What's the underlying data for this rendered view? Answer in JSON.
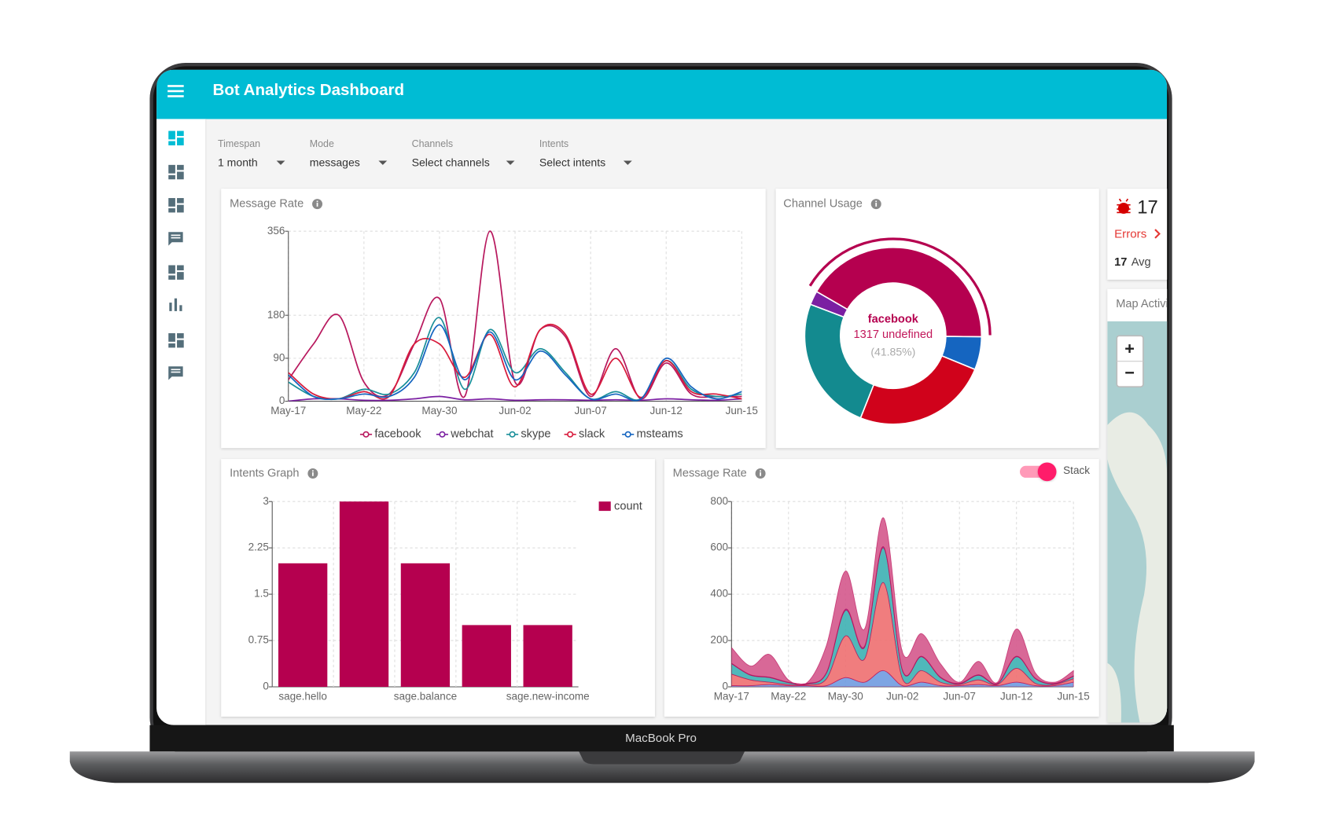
{
  "header": {
    "title": "Bot Analytics Dashboard"
  },
  "filters": [
    {
      "label": "Timespan",
      "value": "1 month"
    },
    {
      "label": "Mode",
      "value": "messages"
    },
    {
      "label": "Channels",
      "value": "Select channels"
    },
    {
      "label": "Intents",
      "value": "Select intents"
    }
  ],
  "errors": {
    "count": 17,
    "label": "Errors",
    "avg": 17,
    "avg_label": "Avg"
  },
  "map": {
    "title": "Map Activity",
    "zoom_in": "+",
    "zoom_out": "−"
  },
  "device_label": "MacBook Pro",
  "chart_data": [
    {
      "type": "line",
      "title": "Message Rate",
      "categories": [
        "May-17",
        null,
        null,
        "May-22",
        null,
        null,
        "May-30",
        null,
        null,
        "Jun-02",
        null,
        null,
        "Jun-07",
        null,
        null,
        "Jun-12",
        null,
        null,
        "Jun-15"
      ],
      "ylim": [
        0,
        356
      ],
      "yticks": [
        0,
        90,
        180,
        356
      ],
      "grid": true,
      "legend": "bottom",
      "series": [
        {
          "name": "facebook",
          "color": "#b8195e",
          "values": [
            45,
            120,
            180,
            40,
            15,
            120,
            215,
            10,
            356,
            40,
            150,
            135,
            10,
            110,
            5,
            80,
            15,
            10,
            10
          ]
        },
        {
          "name": "webchat",
          "color": "#7b1fa2",
          "values": [
            0,
            5,
            5,
            2,
            2,
            5,
            10,
            3,
            5,
            2,
            3,
            3,
            2,
            3,
            2,
            5,
            3,
            2,
            5
          ]
        },
        {
          "name": "skype",
          "color": "#1a8f9a",
          "values": [
            40,
            10,
            5,
            25,
            15,
            60,
            175,
            25,
            150,
            60,
            110,
            60,
            5,
            20,
            5,
            85,
            25,
            10,
            15
          ]
        },
        {
          "name": "slack",
          "color": "#d81b3c",
          "values": [
            60,
            15,
            5,
            20,
            10,
            120,
            120,
            50,
            140,
            30,
            150,
            140,
            15,
            90,
            8,
            85,
            20,
            15,
            5
          ]
        },
        {
          "name": "msteams",
          "color": "#1565c0",
          "values": [
            55,
            10,
            5,
            15,
            10,
            50,
            160,
            45,
            145,
            45,
            105,
            55,
            5,
            15,
            5,
            90,
            30,
            5,
            20
          ]
        }
      ]
    },
    {
      "type": "pie",
      "title": "Channel Usage",
      "donut": true,
      "categories": [
        "facebook",
        "msteams",
        "slack",
        "skype",
        "webchat"
      ],
      "values": [
        1317,
        190,
        780,
        780,
        80
      ],
      "colors": [
        "#b5004f",
        "#1565c0",
        "#d0021b",
        "#138a8f",
        "#7b1fa2"
      ],
      "center_title": "facebook",
      "center_value": "1317 undefined",
      "center_percent": "(41.85%)"
    },
    {
      "type": "bar",
      "title": "Intents Graph",
      "categories": [
        "sage.hello",
        null,
        "sage.balance",
        null,
        "sage.new-income"
      ],
      "ylim": [
        0,
        3
      ],
      "yticks": [
        0,
        0.75,
        1.5,
        2.25,
        3
      ],
      "grid": true,
      "legend": "top-right",
      "series": [
        {
          "name": "count",
          "color": "#b5004f",
          "values": [
            2,
            3,
            2,
            1,
            1
          ]
        }
      ]
    },
    {
      "type": "area",
      "title": "Message Rate",
      "stacked": true,
      "stack_toggle_label": "Stack",
      "categories": [
        "May-17",
        null,
        null,
        "May-22",
        null,
        null,
        "May-30",
        null,
        null,
        "Jun-02",
        null,
        null,
        "Jun-07",
        null,
        null,
        "Jun-12",
        null,
        null,
        "Jun-15"
      ],
      "ylim": [
        0,
        800
      ],
      "yticks": [
        0,
        200,
        400,
        600,
        800
      ],
      "grid": true,
      "series": [
        {
          "name": "msteams",
          "color": "#6f9be0",
          "values": [
            5,
            5,
            10,
            5,
            5,
            5,
            40,
            20,
            70,
            5,
            20,
            5,
            5,
            10,
            5,
            20,
            5,
            5,
            20
          ]
        },
        {
          "name": "slack",
          "color": "#ee6f70",
          "values": [
            50,
            25,
            10,
            5,
            5,
            30,
            180,
            100,
            380,
            30,
            50,
            15,
            5,
            20,
            5,
            60,
            10,
            5,
            15
          ]
        },
        {
          "name": "skype",
          "color": "#3db0b2",
          "values": [
            45,
            20,
            20,
            8,
            3,
            25,
            110,
            50,
            150,
            35,
            60,
            20,
            3,
            20,
            3,
            50,
            20,
            3,
            10
          ]
        },
        {
          "name": "webchat",
          "color": "#8e44ad",
          "values": [
            2,
            2,
            2,
            2,
            2,
            2,
            5,
            5,
            5,
            2,
            2,
            2,
            2,
            2,
            2,
            2,
            2,
            2,
            2
          ]
        },
        {
          "name": "facebook",
          "color": "#d4588c",
          "values": [
            68,
            38,
            98,
            10,
            5,
            118,
            165,
            75,
            125,
            78,
            98,
            58,
            5,
            58,
            5,
            118,
            23,
            5,
            23
          ]
        }
      ]
    }
  ]
}
